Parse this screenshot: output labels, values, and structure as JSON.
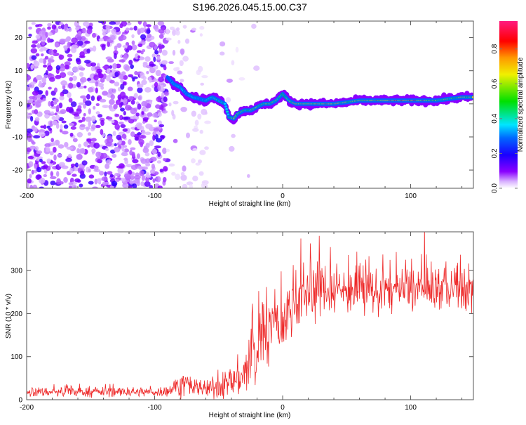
{
  "chart_data": [
    {
      "type": "heatmap",
      "title": "S196.2026.045.15.00.C37",
      "xlabel": "Height of straight line (km)",
      "ylabel": "Frequency (Hz)",
      "xlim": [
        -200,
        149
      ],
      "ylim": [
        -25.5,
        25
      ],
      "xticks": [
        -200,
        -100,
        0,
        100
      ],
      "xtick_labels": [
        "-200",
        "-100",
        "0",
        "100"
      ],
      "yticks": [
        -20,
        -10,
        0,
        10,
        20
      ],
      "ytick_labels": [
        "-20",
        "-10",
        "0",
        "10",
        "20"
      ],
      "colorbar": {
        "label": "Normalized spectral amplitude",
        "range": [
          0,
          0.96
        ],
        "ticks": [
          0.0,
          0.2,
          0.4,
          0.6,
          0.8
        ],
        "tick_labels": [
          "0.0",
          "0.2",
          "0.4",
          "0.6",
          "0.8"
        ],
        "colors": [
          "#ffffff",
          "#cc99ff",
          "#7a00ff",
          "#0000ff",
          "#00e5ff",
          "#00e000",
          "#f0f000",
          "#ff9900",
          "#ff0000",
          "#ff1a80"
        ]
      },
      "noise_regions": [
        {
          "x_range": [
            -200,
            -90
          ],
          "density": 1.0,
          "amplitude": 0.12
        },
        {
          "x_range": [
            -90,
            -58
          ],
          "density": 0.25,
          "amplitude": 0.05
        },
        {
          "x_range": [
            -50,
            -20
          ],
          "density": 0.05,
          "amplitude": 0.04
        }
      ],
      "ridge": {
        "x": [
          -90,
          -85,
          -80,
          -75,
          -70,
          -65,
          -60,
          -55,
          -50,
          -45,
          -42,
          -38,
          -35,
          -30,
          -25,
          -20,
          -15,
          -10,
          -5,
          0,
          5,
          10,
          20,
          30,
          40,
          50,
          60,
          70,
          80,
          90,
          100,
          110,
          120,
          130,
          140,
          149
        ],
        "frequency": [
          8,
          6,
          5,
          3,
          2,
          1.5,
          1,
          2,
          1,
          0,
          -4,
          -4.5,
          -3,
          -2,
          -2,
          -1,
          0,
          0,
          1,
          3,
          1,
          0,
          0,
          0,
          0,
          0.5,
          1,
          1,
          1,
          1,
          1,
          1,
          1,
          1.5,
          2,
          2
        ],
        "amplitude": [
          0.3,
          0.35,
          0.4,
          0.35,
          0.4,
          0.35,
          0.4,
          0.45,
          0.55,
          0.4,
          0.5,
          0.7,
          0.65,
          0.55,
          0.6,
          0.65,
          0.6,
          0.65,
          0.6,
          0.55,
          0.6,
          0.75,
          0.7,
          0.75,
          0.75,
          0.7,
          0.7,
          0.8,
          0.8,
          0.85,
          0.85,
          0.8,
          0.65,
          0.6,
          0.7,
          0.7
        ]
      }
    },
    {
      "type": "line",
      "xlabel": "Height of straight line (km)",
      "ylabel": "SNR (10 * v/v)",
      "xlim": [
        -200,
        149
      ],
      "ylim": [
        0,
        390
      ],
      "xticks": [
        -200,
        -100,
        0,
        100
      ],
      "xtick_labels": [
        "-200",
        "-100",
        "0",
        "100"
      ],
      "yticks": [
        0,
        100,
        200,
        300
      ],
      "ytick_labels": [
        "0",
        "100",
        "200",
        "300"
      ],
      "color": "#ee2a2a",
      "series": [
        {
          "name": "SNR",
          "x": [
            -200,
            -150,
            -100,
            -90,
            -80,
            -70,
            -60,
            -50,
            -40,
            -30,
            -20,
            -15,
            -10,
            -5,
            0,
            10,
            20,
            30,
            50,
            70,
            90,
            110,
            130,
            149
          ],
          "mean": [
            18,
            18,
            18,
            20,
            35,
            30,
            25,
            30,
            40,
            60,
            110,
            160,
            170,
            170,
            180,
            230,
            250,
            260,
            255,
            250,
            255,
            260,
            260,
            255
          ],
          "spread": [
            12,
            12,
            12,
            14,
            30,
            25,
            25,
            30,
            40,
            60,
            110,
            100,
            90,
            90,
            80,
            80,
            80,
            70,
            60,
            60,
            60,
            60,
            60,
            60
          ]
        }
      ]
    }
  ]
}
